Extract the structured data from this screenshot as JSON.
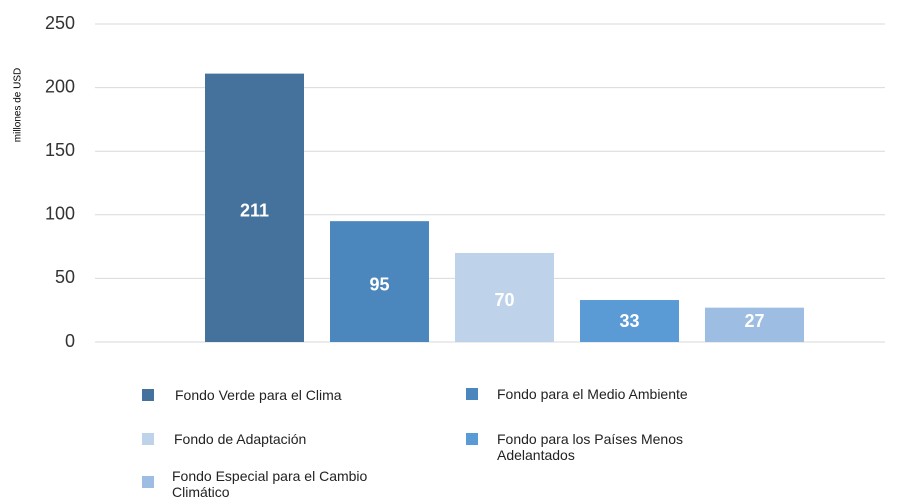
{
  "chart_data": {
    "type": "bar",
    "y_label": "millones de USD",
    "categories": [
      "Fondo Verde para el Clima",
      "Fondo para el Medio Ambiente",
      "Fondo de Adaptación",
      "Fondo para los Países Menos Adelantados",
      "Fondo Especial para el Cambio Climático"
    ],
    "values": [
      211,
      95,
      70,
      33,
      27
    ],
    "colors": [
      "#44729d",
      "#4b86bd",
      "#bed2ea",
      "#5b9bd5",
      "#9dbde2"
    ],
    "ylim": [
      0,
      250
    ],
    "yticks": [
      0,
      50,
      100,
      150,
      200,
      250
    ],
    "grid": true
  }
}
